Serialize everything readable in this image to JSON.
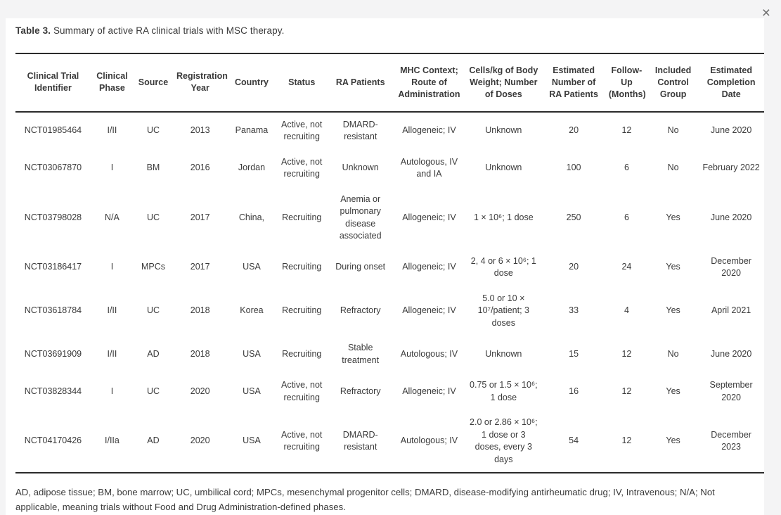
{
  "dialog": {
    "close_label": "×"
  },
  "table": {
    "title_label": "Table 3.",
    "title_text": "Summary of active RA clinical trials with MSC therapy.",
    "columns": [
      "Clinical Trial Identifier",
      "Clinical Phase",
      "Source",
      "Registration Year",
      "Country",
      "Status",
      "RA Patients",
      "MHC Context; Route of Administration",
      "Cells/kg of Body Weight; Number of Doses",
      "Estimated Number of RA Patients",
      "Follow-Up (Months)",
      "Included Control Group",
      "Estimated Completion Date"
    ],
    "rows": [
      [
        "NCT01985464",
        "I/II",
        "UC",
        "2013",
        "Panama",
        "Active, not recruiting",
        "DMARD-resistant",
        "Allogeneic; IV",
        "Unknown",
        "20",
        "12",
        "No",
        "June 2020"
      ],
      [
        "NCT03067870",
        "I",
        "BM",
        "2016",
        "Jordan",
        "Active, not recruiting",
        "Unknown",
        "Autologous, IV and IA",
        "Unknown",
        "100",
        "6",
        "No",
        "February 2022"
      ],
      [
        "NCT03798028",
        "N/A",
        "UC",
        "2017",
        "China,",
        "Recruiting",
        "Anemia or pulmonary disease associated",
        "Allogeneic; IV",
        "1 × 10⁶; 1 dose",
        "250",
        "6",
        "Yes",
        "June 2020"
      ],
      [
        "NCT03186417",
        "I",
        "MPCs",
        "2017",
        "USA",
        "Recruiting",
        "During onset",
        "Allogeneic; IV",
        "2, 4 or 6 × 10⁶; 1 dose",
        "20",
        "24",
        "Yes",
        "December 2020"
      ],
      [
        "NCT03618784",
        "I/II",
        "UC",
        "2018",
        "Korea",
        "Recruiting",
        "Refractory",
        "Allogeneic; IV",
        "5.0 or 10 × 10⁷/patient; 3 doses",
        "33",
        "4",
        "Yes",
        "April 2021"
      ],
      [
        "NCT03691909",
        "I/II",
        "AD",
        "2018",
        "USA",
        "Recruiting",
        "Stable treatment",
        "Autologous; IV",
        "Unknown",
        "15",
        "12",
        "No",
        "June 2020"
      ],
      [
        "NCT03828344",
        "I",
        "UC",
        "2020",
        "USA",
        "Active, not recruiting",
        "Refractory",
        "Allogeneic; IV",
        "0.75 or 1.5 × 10⁶; 1 dose",
        "16",
        "12",
        "Yes",
        "September 2020"
      ],
      [
        "NCT04170426",
        "I/IIa",
        "AD",
        "2020",
        "USA",
        "Active, not recruiting",
        "DMARD-resistant",
        "Autologous; IV",
        "2.0 or 2.86 × 10⁶; 1 dose or 3 doses, every 3 days",
        "54",
        "12",
        "Yes",
        "December 2023"
      ]
    ],
    "footnote": "AD, adipose tissue; BM, bone marrow; UC, umbilical cord; MPCs, mesenchymal progenitor cells; DMARD, disease-modifying antirheumatic drug; IV, Intravenous; N/A; Not applicable, meaning trials without Food and Drug Administration-defined phases."
  },
  "colors": {
    "page_background": "#f4f4f5",
    "panel_background": "#ffffff",
    "text": "#3a3a3a",
    "rule": "#2b2b2b",
    "close_icon": "#6f6f6f"
  }
}
